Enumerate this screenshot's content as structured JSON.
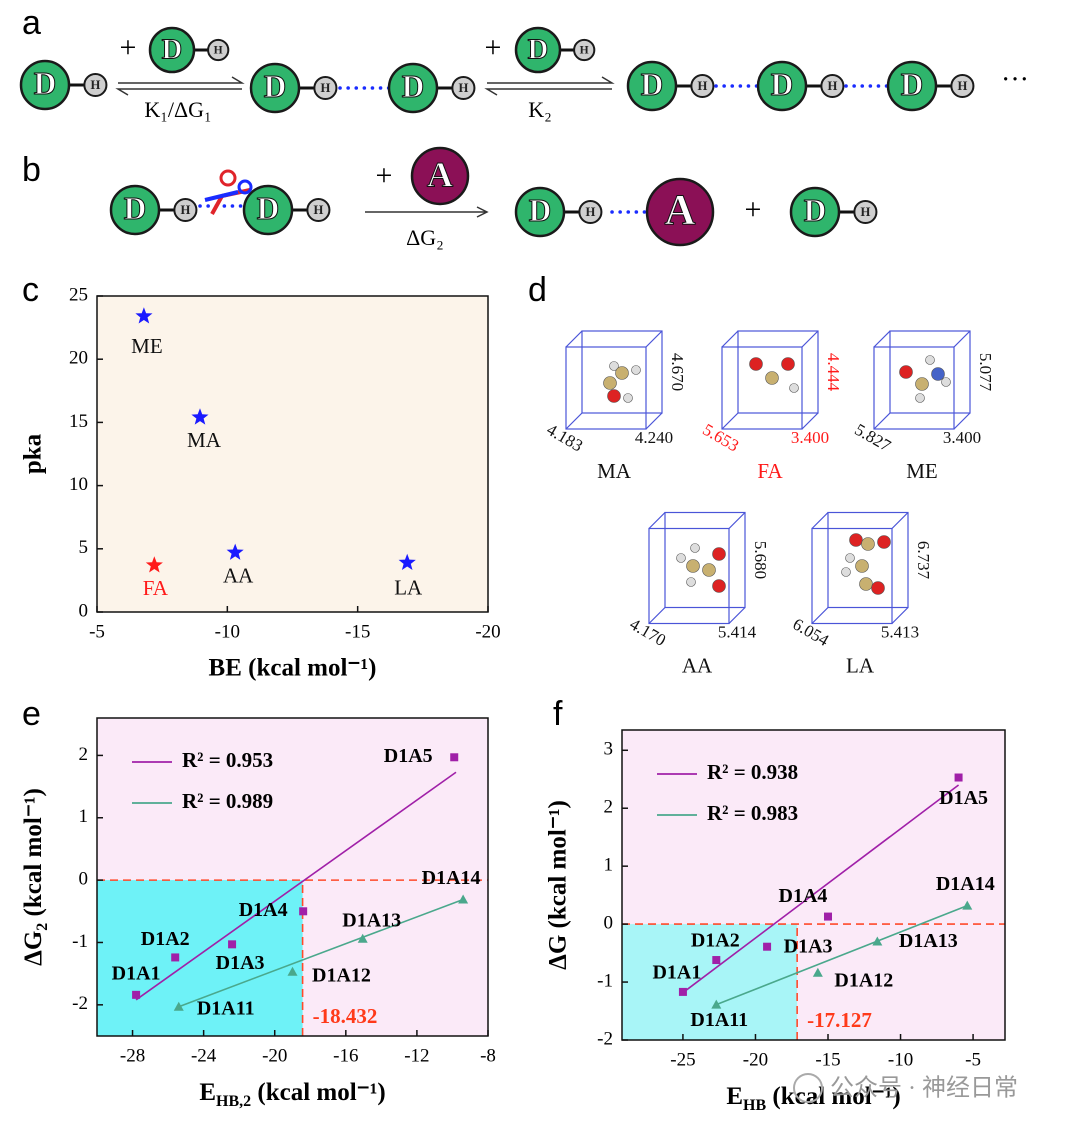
{
  "panel_labels": [
    "a",
    "b",
    "c",
    "d",
    "e",
    "f"
  ],
  "scheme_a": {
    "donor": "D",
    "hydrogen": "H",
    "plus": "+",
    "step1": "K₁/ΔG₁",
    "step2": "K₂",
    "ellipsis": "···"
  },
  "scheme_b": {
    "acceptor": "A",
    "plus": "+",
    "step": "ΔG₂"
  },
  "molecules": [
    {
      "name": "MA",
      "height": "4.670",
      "depth": "4.183",
      "width": "4.240",
      "color": "#111111"
    },
    {
      "name": "FA",
      "height": "4.444",
      "depth": "5.653",
      "width": "3.400",
      "color": "#ff1a1a"
    },
    {
      "name": "ME",
      "height": "5.077",
      "depth": "5.827",
      "width": "3.400",
      "color": "#111111"
    },
    {
      "name": "AA",
      "height": "5.680",
      "depth": "4.170",
      "width": "5.414",
      "color": "#111111"
    },
    {
      "name": "LA",
      "height": "6.737",
      "depth": "6.054",
      "width": "5.413",
      "color": "#111111"
    }
  ],
  "watermark": "公众号 · 神经日常",
  "chart_data": [
    {
      "type": "scatter",
      "x_label": "BE (kcal mol⁻¹)",
      "y_label": "pka",
      "point_labels": [
        "ME",
        "MA",
        "FA",
        "AA",
        "LA"
      ],
      "x": [
        -6.8,
        -8.95,
        -7.2,
        -10.3,
        -16.9
      ],
      "values": [
        23.4,
        15.4,
        3.7,
        4.7,
        3.9
      ],
      "colors": [
        "#1a1aff",
        "#1a1aff",
        "#ff1a1a",
        "#1a1aff",
        "#1a1aff"
      ],
      "background": "#fcf4ea",
      "xlim": [
        -5,
        -20
      ],
      "xticks": [
        -5,
        -10,
        -15,
        -20
      ],
      "ylim": [
        0,
        25
      ],
      "yticks": [
        0,
        5,
        10,
        15,
        20,
        25
      ]
    },
    {
      "type": "scatter",
      "x_label": [
        "E",
        "HB,2",
        " (kcal mol⁻¹)"
      ],
      "y_label": [
        "ΔG",
        "2",
        " (kcal mol⁻¹)"
      ],
      "background": "#fbeaf8",
      "region_color": "#6ef2f7",
      "threshold": {
        "x": -18.432,
        "y": 0
      },
      "legend": "top-left",
      "xlim": [
        -30,
        -8
      ],
      "xticks": [
        -28,
        -24,
        -20,
        -16,
        -12,
        -8
      ],
      "ylim": [
        -2.5,
        2.6
      ],
      "yticks": [
        -2,
        -1,
        0,
        1,
        2
      ],
      "series": [
        {
          "name": "R² = 0.953",
          "color": "#a020a8",
          "marker": "square",
          "point_labels": [
            "D1A1",
            "D1A2",
            "D1A3",
            "D1A4",
            "D1A5"
          ],
          "x": [
            -27.8,
            -25.6,
            -22.4,
            -18.4,
            -9.9
          ],
          "values": [
            -1.84,
            -1.24,
            -1.03,
            -0.5,
            1.97
          ],
          "fit": {
            "x": [
              -27.8,
              -9.8
            ],
            "values": [
              -1.92,
              1.73
            ]
          }
        },
        {
          "name": "R² = 0.989",
          "color": "#4aa88c",
          "marker": "triangle",
          "point_labels": [
            "D1A11",
            "D1A12",
            "D1A13",
            "D1A14"
          ],
          "x": [
            -25.4,
            -19.0,
            -15.05,
            -9.4
          ],
          "values": [
            -2.03,
            -1.47,
            -0.94,
            -0.31
          ],
          "fit": {
            "x": [
              -25.4,
              -9.4
            ],
            "values": [
              -2.03,
              -0.31
            ]
          }
        }
      ]
    },
    {
      "type": "scatter",
      "x_label": [
        "E",
        "HB",
        " (kcal mol⁻¹)"
      ],
      "y_label": "ΔG (kcal mol⁻¹)",
      "background": "#fbeaf8",
      "region_color": "#a8f5f7",
      "threshold": {
        "x": -17.127,
        "y": 0
      },
      "legend": "top-left",
      "xlim": [
        -29.2,
        -2.8
      ],
      "xticks": [
        -25,
        -20,
        -15,
        -10,
        -5
      ],
      "ylim": [
        -2,
        3.35
      ],
      "yticks": [
        -2,
        -1,
        0,
        1,
        2,
        3
      ],
      "series": [
        {
          "name": "R² = 0.938",
          "color": "#a020a8",
          "marker": "square",
          "point_labels": [
            "D1A1",
            "D1A2",
            "D1A3",
            "D1A4",
            "D1A5"
          ],
          "x": [
            -25.0,
            -22.7,
            -19.2,
            -15.0,
            -6.0
          ],
          "values": [
            -1.17,
            -0.62,
            -0.39,
            0.13,
            2.53
          ],
          "fit": {
            "x": [
              -25.2,
              -6.0
            ],
            "values": [
              -1.22,
              2.4
            ]
          }
        },
        {
          "name": "R² = 0.983",
          "color": "#4aa88c",
          "marker": "triangle",
          "point_labels": [
            "D1A11",
            "D1A12",
            "D1A13",
            "D1A14"
          ],
          "x": [
            -22.7,
            -15.7,
            -11.6,
            -5.4
          ],
          "values": [
            -1.39,
            -0.84,
            -0.3,
            0.32
          ],
          "fit": {
            "x": [
              -22.7,
              -5.4
            ],
            "values": [
              -1.39,
              0.32
            ]
          }
        }
      ]
    }
  ]
}
